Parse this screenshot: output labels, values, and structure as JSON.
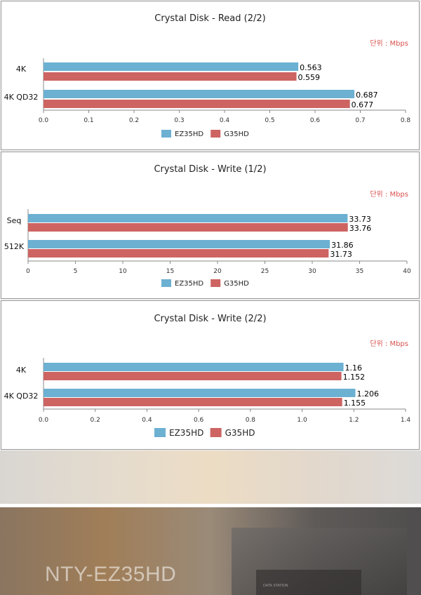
{
  "colors": {
    "series_1": "#6cb0d2",
    "series_2": "#cd6462",
    "unit": "#d9534f",
    "axis": "#888888"
  },
  "chart_data": [
    {
      "type": "bar",
      "orientation": "horizontal",
      "title": "Crystal Disk - Read (2/2)",
      "unit_label": "단위 : Mbps",
      "categories": [
        "4K",
        "4K QD32"
      ],
      "series": [
        {
          "name": "EZ35HD",
          "values": [
            0.563,
            0.687
          ]
        },
        {
          "name": "G35HD",
          "values": [
            0.559,
            0.677
          ]
        }
      ],
      "value_labels": [
        [
          "0.563",
          "0.687"
        ],
        [
          "0.559",
          "0.677"
        ]
      ],
      "xlim": [
        0,
        0.8
      ],
      "ticks": [
        "0.0",
        "0.1",
        "0.2",
        "0.3",
        "0.4",
        "0.5",
        "0.6",
        "0.7",
        "0.8"
      ],
      "grid": false,
      "legend_position": "bottom"
    },
    {
      "type": "bar",
      "orientation": "horizontal",
      "title": "Crystal Disk - Write (1/2)",
      "unit_label": "단위 : Mbps",
      "categories": [
        "Seq",
        "512K"
      ],
      "series": [
        {
          "name": "EZ35HD",
          "values": [
            33.73,
            31.86
          ]
        },
        {
          "name": "G35HD",
          "values": [
            33.76,
            31.73
          ]
        }
      ],
      "value_labels": [
        [
          "33.73",
          "31.86"
        ],
        [
          "33.76",
          "31.73"
        ]
      ],
      "xlim": [
        0,
        40
      ],
      "ticks": [
        "0",
        "5",
        "10",
        "15",
        "20",
        "25",
        "30",
        "35",
        "40"
      ],
      "grid": false,
      "legend_position": "bottom"
    },
    {
      "type": "bar",
      "orientation": "horizontal",
      "title": "Crystal Disk - Write (2/2)",
      "unit_label": "단위 : Mbps",
      "categories": [
        "4K",
        "4K QD32"
      ],
      "series": [
        {
          "name": "EZ35HD",
          "values": [
            1.16,
            1.206
          ]
        },
        {
          "name": "G35HD",
          "values": [
            1.152,
            1.155
          ]
        }
      ],
      "value_labels": [
        [
          "1.16",
          "1.206"
        ],
        [
          "1.152",
          "1.155"
        ]
      ],
      "xlim": [
        0,
        1.4
      ],
      "ticks": [
        "0.0",
        "0.2",
        "0.4",
        "0.6",
        "0.8",
        "1.0",
        "1.2",
        "1.4"
      ],
      "grid": false,
      "legend_position": "bottom"
    }
  ],
  "background": {
    "product_name": "NTY-EZ35HD"
  }
}
